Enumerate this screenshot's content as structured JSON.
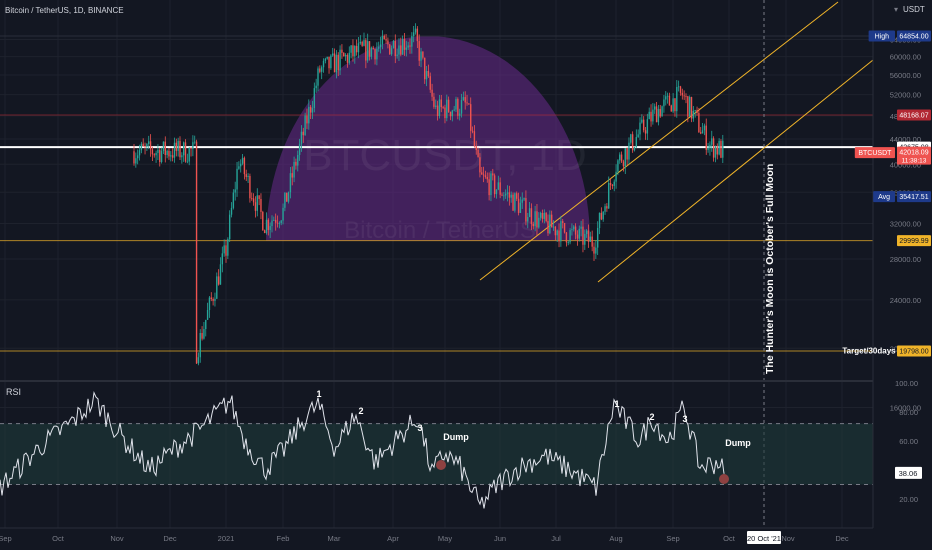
{
  "header": {
    "symbol_title": "Bitcoin / TetherUS, 1D, BINANCE",
    "currency": "USDT"
  },
  "watermark": {
    "symbol": "BTCUSDT, 1D",
    "name": "Bitcoin / TetherUS"
  },
  "price_axis": {
    "ticks": [
      "64000.00",
      "60000.00",
      "56000.00",
      "52000.00",
      "48000.00",
      "44000.00",
      "40000.00",
      "36000.00",
      "32000.00",
      "28000.00",
      "24000.00",
      "20000.00",
      "16000.00"
    ],
    "labels": [
      {
        "tag": "High",
        "value": "64854.00",
        "price": 64854,
        "color": "#1e3a8a"
      },
      {
        "tag": "",
        "value": "48168.07",
        "price": 48168.07,
        "color": "#b22833"
      },
      {
        "tag": "",
        "value": "42675.08",
        "price": 42675.08,
        "color": "#ffffff"
      },
      {
        "tag": "BTCUSDT",
        "value": "42018.09",
        "sub": "11:38:13",
        "price": 41800,
        "color": "#ef5350"
      },
      {
        "tag": "Avg",
        "value": "35417.51",
        "price": 35417.51,
        "color": "#1e3a8a"
      },
      {
        "tag": "",
        "value": "29999.99",
        "price": 29999.99,
        "color": "#f0b429"
      },
      {
        "tag": "Target/30days",
        "value": "19798.00",
        "price": 19798,
        "color": "#f0b429"
      }
    ]
  },
  "rsi_panel": {
    "title": "RSI",
    "ticks": [
      "100.00",
      "80.00",
      "60.00",
      "40.00",
      "20.00"
    ],
    "current": "38.06",
    "annotations": [
      "1",
      "2",
      "3",
      "Dump",
      "1",
      "2",
      "3",
      "Dump"
    ]
  },
  "time_axis": {
    "labels": [
      "Sep",
      "Oct",
      "Nov",
      "Dec",
      "2021",
      "Feb",
      "Mar",
      "Apr",
      "May",
      "Jun",
      "Jul",
      "Aug",
      "Sep",
      "Oct",
      "20 Oct '21",
      "Nov",
      "Dec"
    ]
  },
  "vertical_note": "The Hunter's Moon is October's Full Moon",
  "colors": {
    "up": "#26a69a",
    "down": "#ef5350",
    "bg": "#131722",
    "arc": "#6a2a8c",
    "rsi_line": "#e0e3eb",
    "rsi_band": "#1e3a3a"
  },
  "chart_data": {
    "type": "candlestick",
    "title": "Bitcoin / TetherUS, 1D, BINANCE",
    "ylim": [
      15000,
      66000
    ],
    "x": [
      "2020-12-15",
      "2021-01-01",
      "2021-01-08",
      "2021-01-22",
      "2021-02-01",
      "2021-02-21",
      "2021-03-13",
      "2021-04-14",
      "2021-04-25",
      "2021-05-12",
      "2021-05-19",
      "2021-06-01",
      "2021-06-22",
      "2021-07-20",
      "2021-08-01",
      "2021-08-23",
      "2021-09-06",
      "2021-09-21",
      "2021-09-29"
    ],
    "close": [
      19300,
      29000,
      40800,
      32000,
      33500,
      57000,
      61000,
      64000,
      49000,
      50000,
      38000,
      36000,
      32000,
      29800,
      40000,
      49000,
      52000,
      43000,
      42018
    ],
    "levels": {
      "high": 64854,
      "resistance": 48168.07,
      "pivot": 42675.08,
      "avg": 35417.51,
      "support": 29999.99,
      "target": 19798
    },
    "rsi": {
      "ylim": [
        0,
        100
      ],
      "bands": [
        30,
        70
      ],
      "last": 38.06
    }
  }
}
